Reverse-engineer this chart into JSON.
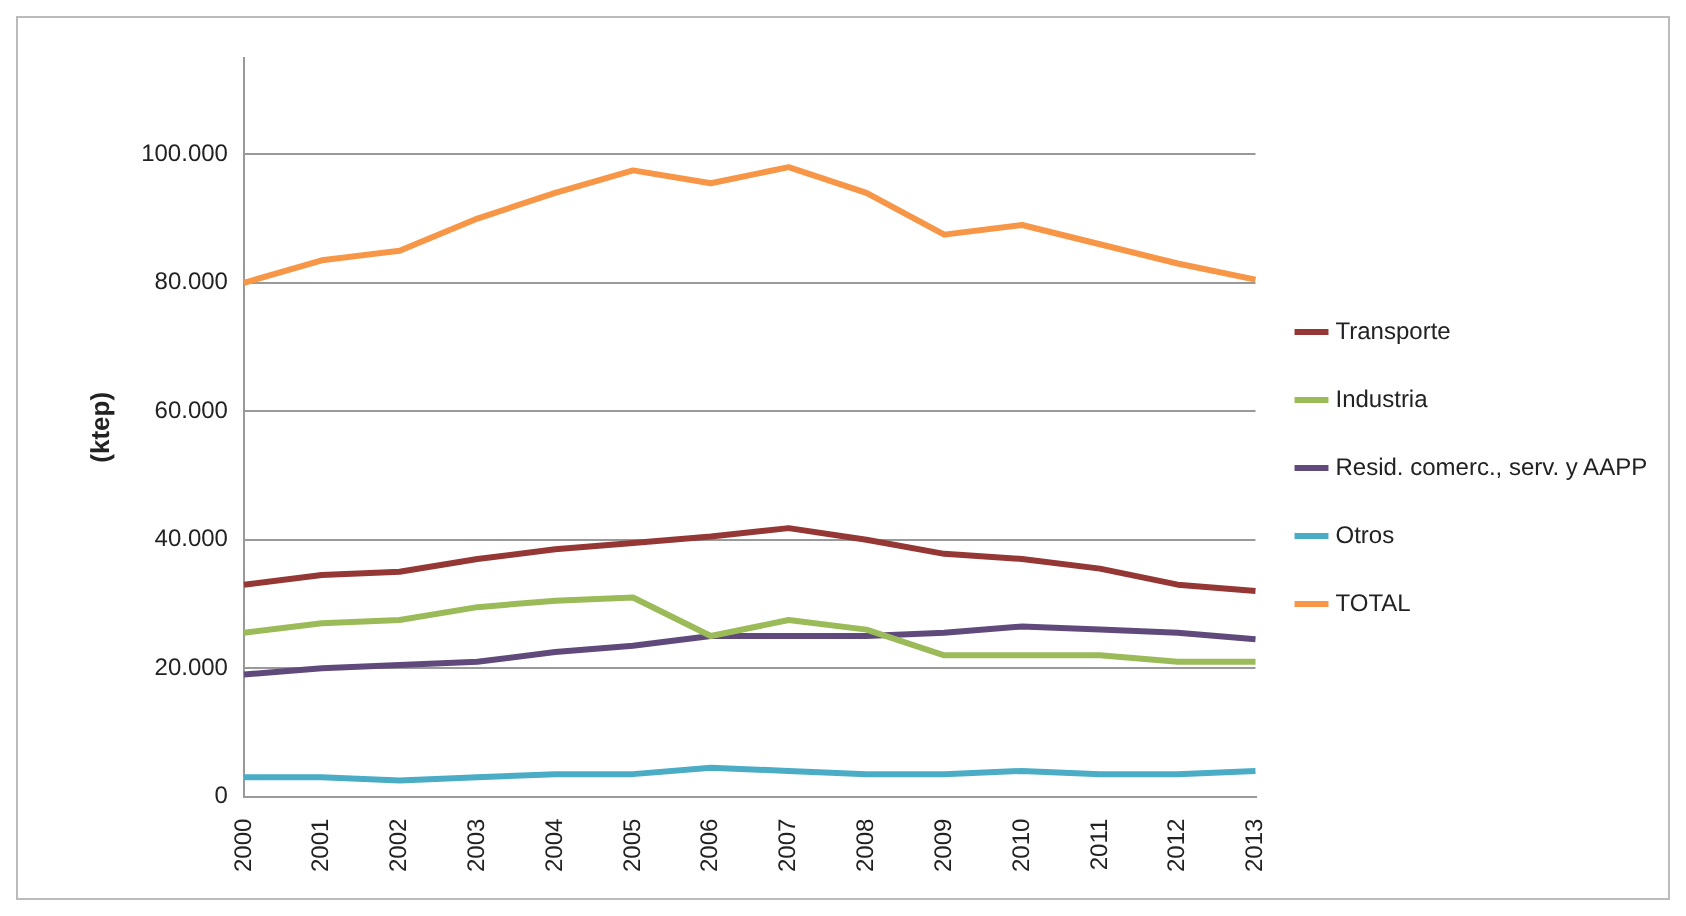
{
  "chart_data": {
    "type": "line",
    "ylabel": "(ktep)",
    "categories": [
      "2000",
      "2001",
      "2002",
      "2003",
      "2004",
      "2005",
      "2006",
      "2007",
      "2008",
      "2009",
      "2010",
      "2011",
      "2012",
      "2013"
    ],
    "series": [
      {
        "name": "Transporte",
        "color": "#953735",
        "values": [
          33000,
          34500,
          35000,
          37000,
          38500,
          39500,
          40500,
          41800,
          40000,
          37800,
          37000,
          35500,
          33000,
          32000
        ]
      },
      {
        "name": "Industria",
        "color": "#9bbb59",
        "values": [
          25500,
          27000,
          27500,
          29500,
          30500,
          31000,
          25000,
          27500,
          26000,
          22000,
          22000,
          22000,
          21000,
          21000
        ]
      },
      {
        "name": "Resid. comerc., serv. y AAPP",
        "color": "#604a7b",
        "values": [
          19000,
          20000,
          20500,
          21000,
          22500,
          23500,
          25000,
          25000,
          25000,
          25500,
          26500,
          26000,
          25500,
          24500
        ]
      },
      {
        "name": "Otros",
        "color": "#4bacc6",
        "values": [
          3000,
          3000,
          2500,
          3000,
          3500,
          3500,
          4500,
          4000,
          3500,
          3500,
          4000,
          3500,
          3500,
          4000
        ]
      },
      {
        "name": "TOTAL",
        "color": "#f79646",
        "values": [
          80000,
          83500,
          85000,
          90000,
          94000,
          97500,
          95500,
          98000,
          94000,
          87500,
          89000,
          86000,
          83000,
          80500
        ]
      }
    ],
    "ylim": [
      0,
      115000
    ],
    "yticks": [
      {
        "value": 0,
        "label": "0"
      },
      {
        "value": 20000,
        "label": "20.000"
      },
      {
        "value": 40000,
        "label": "40.000"
      },
      {
        "value": 60000,
        "label": "60.000"
      },
      {
        "value": 80000,
        "label": "80.000"
      },
      {
        "value": 100000,
        "label": "100.000"
      }
    ],
    "grid": "y",
    "legend": "right",
    "marker": "none",
    "line_style": "solid"
  }
}
